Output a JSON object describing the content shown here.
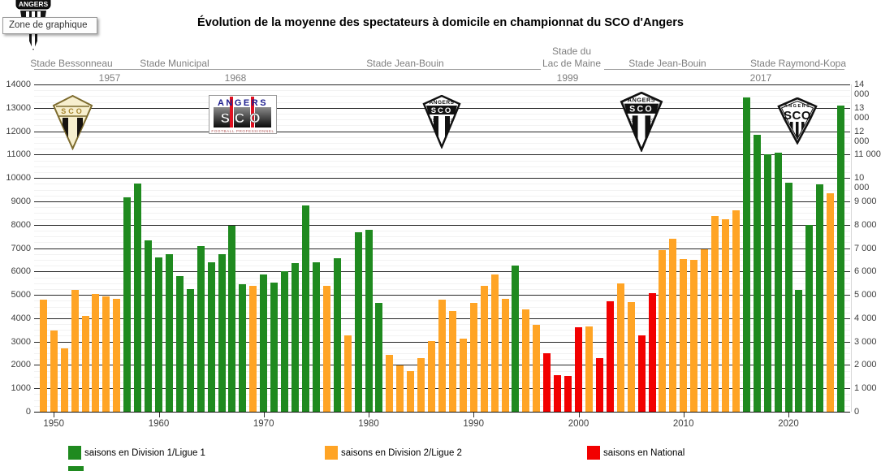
{
  "tooltip": {
    "label": "Zone de graphique"
  },
  "title": {
    "text": "Évolution de la moyenne des spectateurs à domicile en championnat du SCO d'Angers"
  },
  "stadium_header": {
    "bessonneau": "Stade Bessonneau",
    "municipal": "Stade Municipal",
    "jean_bouin_1": "Stade Jean-Bouin",
    "lac_de_maine_line1": "Stade du",
    "lac_de_maine_line2": "Lac de Maine",
    "jean_bouin_2": "Stade Jean-Bouin",
    "raymond_kopa": "Stade Raymond-Kopa",
    "year_1957": "1957",
    "year_1968": "1968",
    "year_1999": "1999",
    "year_2017": "2017"
  },
  "axes": {
    "y_left": [
      "0",
      "1000",
      "2000",
      "3000",
      "4000",
      "5000",
      "6000",
      "7000",
      "8000",
      "9000",
      "10000",
      "11000",
      "12000",
      "13000",
      "14000"
    ],
    "y_right": [
      "0",
      "1 000",
      "2 000",
      "3 000",
      "4 000",
      "5 000",
      "6 000",
      "7 000",
      "8 000",
      "9 000",
      "10 000",
      "11 000",
      "12 000",
      "13 000",
      "14 000"
    ],
    "x_ticks": [
      "1950",
      "1960",
      "1970",
      "1980",
      "1990",
      "2000",
      "2010",
      "2020"
    ]
  },
  "legend": {
    "items": [
      {
        "label": "saisons en Division 1/Ligue 1",
        "division": "D1",
        "color": "#1F8A1F"
      },
      {
        "label": "saisons en Division 2/Ligue 2",
        "division": "D2",
        "color": "#FFA425"
      },
      {
        "label": "saisons en National",
        "division": "NAT",
        "color": "#F20000"
      }
    ]
  },
  "logos": {
    "angers": "ANGERS",
    "sco": "SCO",
    "football_professionnel": "FOOTBALL PROFESSIONNEL",
    "founded_left": "19",
    "founded_right": "19"
  },
  "chart_data": {
    "type": "bar",
    "title": "Évolution de la moyenne des spectateurs à domicile en championnat du SCO d'Angers",
    "ylabel": "",
    "xlabel": "",
    "ylim": [
      0,
      14000
    ],
    "y_major_grid_step": 1000,
    "x_first_season": 1949,
    "x_last_season": 2025,
    "legend_position": "bottom",
    "divisions": {
      "D1": "saisons en Division 1/Ligue 1",
      "D2": "saisons en Division 2/Ligue 2",
      "NAT": "saisons en National"
    },
    "bars": [
      {
        "year": 1949,
        "value": 4800,
        "division": "D2"
      },
      {
        "year": 1950,
        "value": 3460,
        "division": "D2"
      },
      {
        "year": 1951,
        "value": 2710,
        "division": "D2"
      },
      {
        "year": 1952,
        "value": 5220,
        "division": "D2"
      },
      {
        "year": 1953,
        "value": 4100,
        "division": "D2"
      },
      {
        "year": 1954,
        "value": 5030,
        "division": "D2"
      },
      {
        "year": 1955,
        "value": 4940,
        "division": "D2"
      },
      {
        "year": 1956,
        "value": 4840,
        "division": "D2"
      },
      {
        "year": 1957,
        "value": 9180,
        "division": "D1"
      },
      {
        "year": 1958,
        "value": 9760,
        "division": "D1"
      },
      {
        "year": 1959,
        "value": 7330,
        "division": "D1"
      },
      {
        "year": 1960,
        "value": 6590,
        "division": "D1"
      },
      {
        "year": 1961,
        "value": 6740,
        "division": "D1"
      },
      {
        "year": 1962,
        "value": 5800,
        "division": "D1"
      },
      {
        "year": 1963,
        "value": 5250,
        "division": "D1"
      },
      {
        "year": 1964,
        "value": 7100,
        "division": "D1"
      },
      {
        "year": 1965,
        "value": 6400,
        "division": "D1"
      },
      {
        "year": 1966,
        "value": 6730,
        "division": "D1"
      },
      {
        "year": 1967,
        "value": 7960,
        "division": "D1"
      },
      {
        "year": 1968,
        "value": 5470,
        "division": "D1"
      },
      {
        "year": 1969,
        "value": 5390,
        "division": "D2"
      },
      {
        "year": 1970,
        "value": 5860,
        "division": "D1"
      },
      {
        "year": 1971,
        "value": 5530,
        "division": "D1"
      },
      {
        "year": 1972,
        "value": 6000,
        "division": "D1"
      },
      {
        "year": 1973,
        "value": 6350,
        "division": "D1"
      },
      {
        "year": 1974,
        "value": 8810,
        "division": "D1"
      },
      {
        "year": 1975,
        "value": 6400,
        "division": "D1"
      },
      {
        "year": 1976,
        "value": 5390,
        "division": "D2"
      },
      {
        "year": 1977,
        "value": 6580,
        "division": "D1"
      },
      {
        "year": 1978,
        "value": 3270,
        "division": "D2"
      },
      {
        "year": 1979,
        "value": 7670,
        "division": "D1"
      },
      {
        "year": 1980,
        "value": 7770,
        "division": "D1"
      },
      {
        "year": 1981,
        "value": 4660,
        "division": "D1"
      },
      {
        "year": 1982,
        "value": 2440,
        "division": "D2"
      },
      {
        "year": 1983,
        "value": 1990,
        "division": "D2"
      },
      {
        "year": 1984,
        "value": 1730,
        "division": "D2"
      },
      {
        "year": 1985,
        "value": 2310,
        "division": "D2"
      },
      {
        "year": 1986,
        "value": 3020,
        "division": "D2"
      },
      {
        "year": 1987,
        "value": 4780,
        "division": "D2"
      },
      {
        "year": 1988,
        "value": 4300,
        "division": "D2"
      },
      {
        "year": 1989,
        "value": 3120,
        "division": "D2"
      },
      {
        "year": 1990,
        "value": 4640,
        "division": "D2"
      },
      {
        "year": 1991,
        "value": 5380,
        "division": "D2"
      },
      {
        "year": 1992,
        "value": 5860,
        "division": "D2"
      },
      {
        "year": 1993,
        "value": 4830,
        "division": "D2"
      },
      {
        "year": 1994,
        "value": 6240,
        "division": "D1"
      },
      {
        "year": 1995,
        "value": 4390,
        "division": "D2"
      },
      {
        "year": 1996,
        "value": 3720,
        "division": "D2"
      },
      {
        "year": 1997,
        "value": 2520,
        "division": "NAT"
      },
      {
        "year": 1998,
        "value": 1570,
        "division": "NAT"
      },
      {
        "year": 1999,
        "value": 1520,
        "division": "NAT"
      },
      {
        "year": 2000,
        "value": 3600,
        "division": "NAT"
      },
      {
        "year": 2001,
        "value": 3640,
        "division": "D2"
      },
      {
        "year": 2002,
        "value": 2290,
        "division": "NAT"
      },
      {
        "year": 2003,
        "value": 4720,
        "division": "NAT"
      },
      {
        "year": 2004,
        "value": 5490,
        "division": "D2"
      },
      {
        "year": 2005,
        "value": 4690,
        "division": "D2"
      },
      {
        "year": 2006,
        "value": 3250,
        "division": "NAT"
      },
      {
        "year": 2007,
        "value": 5070,
        "division": "NAT"
      },
      {
        "year": 2008,
        "value": 6920,
        "division": "D2"
      },
      {
        "year": 2009,
        "value": 7400,
        "division": "D2"
      },
      {
        "year": 2010,
        "value": 6550,
        "division": "D2"
      },
      {
        "year": 2011,
        "value": 6490,
        "division": "D2"
      },
      {
        "year": 2012,
        "value": 6950,
        "division": "D2"
      },
      {
        "year": 2013,
        "value": 8380,
        "division": "D2"
      },
      {
        "year": 2014,
        "value": 8230,
        "division": "D2"
      },
      {
        "year": 2015,
        "value": 8610,
        "division": "D2"
      },
      {
        "year": 2016,
        "value": 13460,
        "division": "D1"
      },
      {
        "year": 2017,
        "value": 11850,
        "division": "D1"
      },
      {
        "year": 2018,
        "value": 11030,
        "division": "D1"
      },
      {
        "year": 2019,
        "value": 11090,
        "division": "D1"
      },
      {
        "year": 2020,
        "value": 9790,
        "division": "D1"
      },
      {
        "year": 2021,
        "value": 5220,
        "division": "D1"
      },
      {
        "year": 2022,
        "value": 7980,
        "division": "D1"
      },
      {
        "year": 2023,
        "value": 9740,
        "division": "D1"
      },
      {
        "year": 2024,
        "value": 9360,
        "division": "D2"
      },
      {
        "year": 2025,
        "value": 13110,
        "division": "D1"
      }
    ]
  }
}
